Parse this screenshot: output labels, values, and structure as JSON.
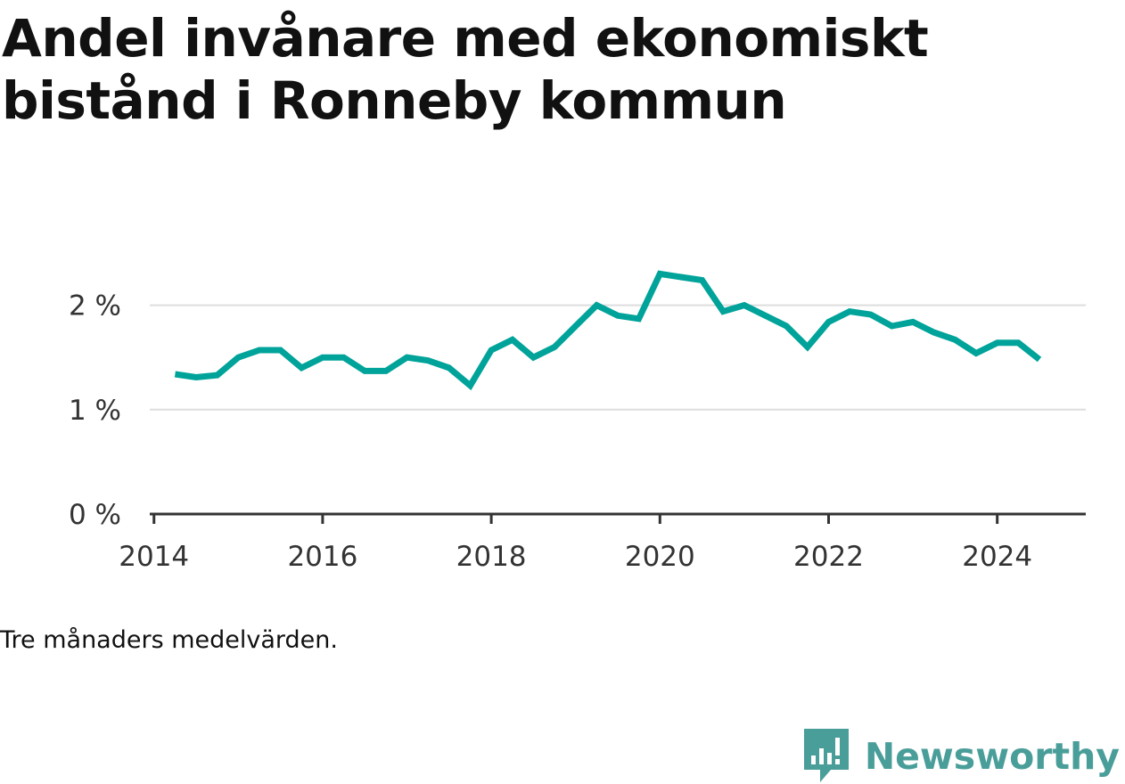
{
  "title": "Andel invånare med ekonomiskt bistånd i Ronneby kommun",
  "note": "Tre månaders medelvärden.",
  "brand": {
    "name": "Newsworthy",
    "icon": "newsworthy-logo-icon",
    "color": "#4a9e9a"
  },
  "chart_data": {
    "type": "line",
    "title": "Andel invånare med ekonomiskt bistånd i Ronneby kommun",
    "xlabel": "",
    "ylabel": "",
    "ylim": [
      0,
      2.5
    ],
    "xlim": [
      2013.95,
      2025.05
    ],
    "grid": true,
    "color": "#00a39a",
    "yticks": [
      {
        "value": 0,
        "label": "0 %"
      },
      {
        "value": 1,
        "label": "1 %"
      },
      {
        "value": 2,
        "label": "2 %"
      }
    ],
    "xticks": [
      {
        "value": 2014,
        "label": "2014"
      },
      {
        "value": 2016,
        "label": "2016"
      },
      {
        "value": 2018,
        "label": "2018"
      },
      {
        "value": 2020,
        "label": "2020"
      },
      {
        "value": 2022,
        "label": "2022"
      },
      {
        "value": 2024,
        "label": "2024"
      }
    ],
    "series": [
      {
        "x": [
          2014.25,
          2014.5,
          2014.75,
          2015.0,
          2015.25,
          2015.5,
          2015.75,
          2016.0,
          2016.25,
          2016.5,
          2016.75,
          2017.0,
          2017.25,
          2017.5,
          2017.75,
          2018.0,
          2018.25,
          2018.5,
          2018.75,
          2019.0,
          2019.25,
          2019.5,
          2019.75,
          2020.0,
          2020.25,
          2020.5,
          2020.75,
          2021.0,
          2021.25,
          2021.5,
          2021.75,
          2022.0,
          2022.25,
          2022.5,
          2022.75,
          2023.0,
          2023.25,
          2023.5,
          2023.75,
          2024.0,
          2024.25,
          2024.5
        ],
        "values": [
          1.34,
          1.31,
          1.33,
          1.5,
          1.57,
          1.57,
          1.4,
          1.5,
          1.5,
          1.37,
          1.37,
          1.5,
          1.47,
          1.4,
          1.23,
          1.57,
          1.67,
          1.5,
          1.6,
          1.8,
          2.0,
          1.9,
          1.87,
          2.3,
          2.27,
          2.24,
          1.94,
          2.0,
          1.9,
          1.8,
          1.6,
          1.84,
          1.94,
          1.91,
          1.8,
          1.84,
          1.74,
          1.67,
          1.54,
          1.64,
          1.64,
          1.48
        ]
      }
    ]
  }
}
